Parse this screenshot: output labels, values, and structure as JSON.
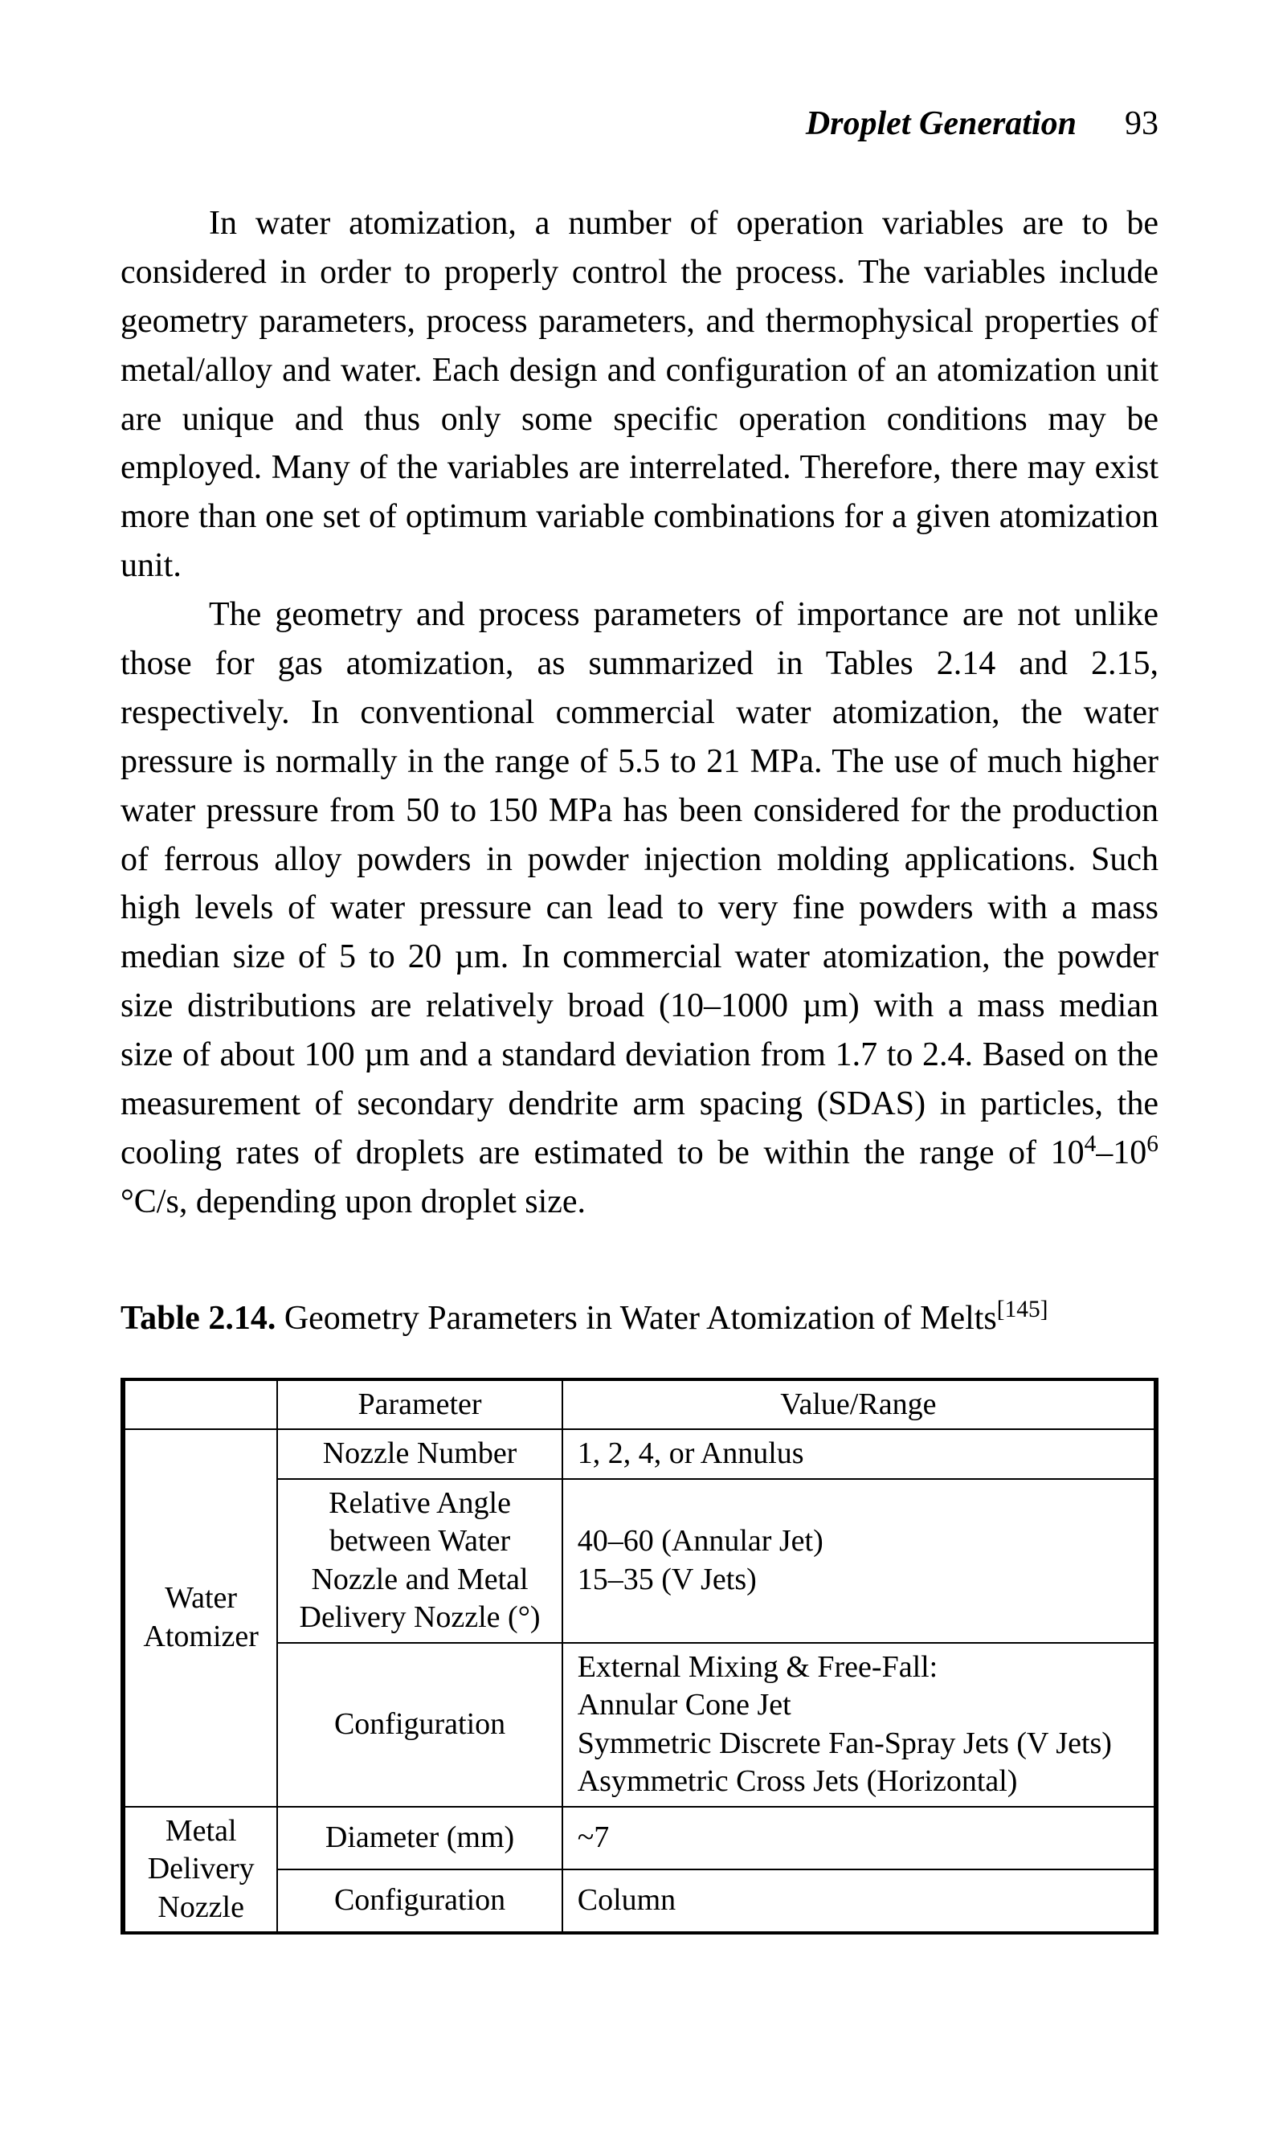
{
  "header": {
    "title": "Droplet Generation",
    "page_number": "93"
  },
  "paragraphs": {
    "p1": "In water atomization, a number of operation variables are to be considered in order to properly control the process. The variables include geometry parameters, process parameters, and thermophysical properties of metal/alloy and water. Each design and configuration of an atomization unit are unique and thus only some specific operation conditions may be employed. Many of the variables are interrelated. Therefore, there may exist more than one set of optimum variable combinations for a given atomization unit.",
    "p2_a": "The geometry and process parameters of importance are not unlike those for gas atomization, as summarized in Tables 2.14 and 2.15, respectively. In conventional commercial water atomization, the water pressure is normally in the range of 5.5 to 21 MPa. The use of much higher water pressure from 50 to 150 MPa has been considered for the production of ferrous alloy powders in powder injection molding applications. Such high levels of water pressure can lead to very fine powders with a mass median size of 5 to 20 µm. In commercial water atomization, the powder size distributions are relatively broad (10–1000 µm) with a mass median size of about 100 µm and a standard deviation from 1.7 to 2.4. Based on the measurement of secondary dendrite arm spacing (SDAS) in particles, the cooling rates of droplets are estimated to be within the range of 10",
    "p2_exp1": "4",
    "p2_dash": "–10",
    "p2_exp2": "6",
    "p2_b": " °C/s, depending upon droplet size."
  },
  "table_caption": {
    "label": "Table 2.14.",
    "text": " Geometry Parameters in Water Atomization of Melts",
    "ref": "[145]"
  },
  "table": {
    "head": {
      "blank": "",
      "param": "Parameter",
      "value": "Value/Range"
    },
    "rows": {
      "water_atomizer_label": "Water\nAtomizer",
      "metal_nozzle_label": "Metal\nDelivery\nNozzle",
      "r1_param": "Nozzle Number",
      "r1_value": "1, 2, 4, or Annulus",
      "r2_param": "Relative Angle\nbetween Water\nNozzle and Metal\nDelivery Nozzle (°)",
      "r2_value": "40–60 (Annular Jet)\n15–35 (V Jets)",
      "r3_param": "Configuration",
      "r3_value": "External Mixing & Free-Fall:\nAnnular Cone Jet\nSymmetric Discrete Fan-Spray Jets (V Jets)\nAsymmetric Cross Jets (Horizontal)",
      "r4_param": "Diameter (mm)",
      "r4_value": "~7",
      "r5_param": "Configuration",
      "r5_value": "Column"
    }
  }
}
